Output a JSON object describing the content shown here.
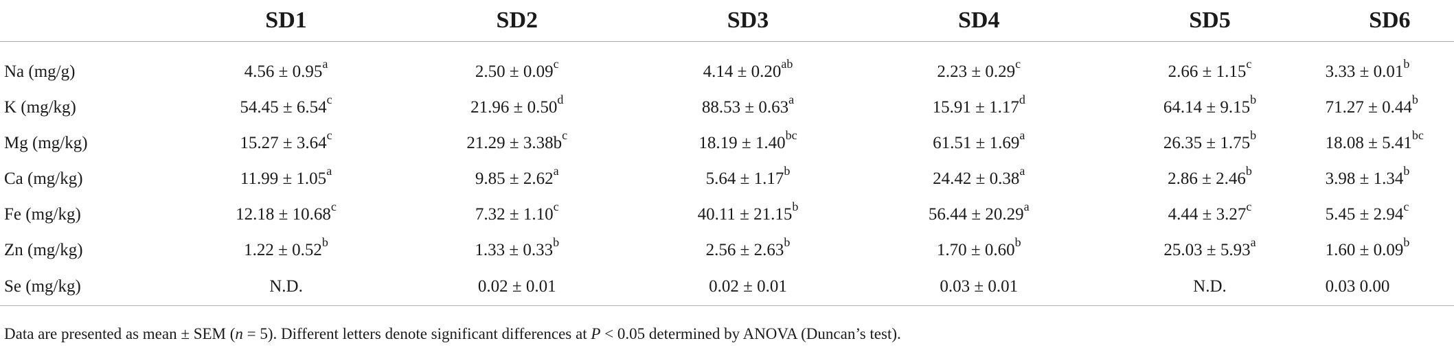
{
  "table": {
    "headers": [
      "",
      "SD1",
      "SD2",
      "SD3",
      "SD4",
      "SD5",
      "SD6"
    ],
    "rows": [
      {
        "label": "Na (mg/g)",
        "cells": [
          {
            "v": "4.56 ± 0.95",
            "s": "a"
          },
          {
            "v": "2.50 ± 0.09",
            "s": "c"
          },
          {
            "v": "4.14 ± 0.20",
            "s": "ab"
          },
          {
            "v": "2.23 ± 0.29",
            "s": "c"
          },
          {
            "v": "2.66 ± 1.15",
            "s": "c"
          },
          {
            "v": "3.33 ± 0.01",
            "s": "b"
          }
        ]
      },
      {
        "label": "K (mg/kg)",
        "cells": [
          {
            "v": "54.45 ± 6.54",
            "s": "c"
          },
          {
            "v": "21.96 ± 0.50",
            "s": "d"
          },
          {
            "v": "88.53 ± 0.63",
            "s": "a"
          },
          {
            "v": "15.91 ± 1.17",
            "s": "d"
          },
          {
            "v": "64.14 ± 9.15",
            "s": "b"
          },
          {
            "v": "71.27 ± 0.44",
            "s": "b"
          }
        ]
      },
      {
        "label": "Mg (mg/kg)",
        "cells": [
          {
            "v": "15.27 ± 3.64",
            "s": "c"
          },
          {
            "v": "21.29 ± 3.38b",
            "s": "c"
          },
          {
            "v": "18.19 ± 1.40",
            "s": "bc"
          },
          {
            "v": "61.51 ± 1.69",
            "s": "a"
          },
          {
            "v": "26.35 ± 1.75",
            "s": "b"
          },
          {
            "v": "18.08 ± 5.41",
            "s": "bc"
          }
        ]
      },
      {
        "label": "Ca (mg/kg)",
        "cells": [
          {
            "v": "11.99 ± 1.05",
            "s": "a"
          },
          {
            "v": "9.85 ± 2.62",
            "s": "a"
          },
          {
            "v": "5.64 ± 1.17",
            "s": "b"
          },
          {
            "v": "24.42 ± 0.38",
            "s": "a"
          },
          {
            "v": "2.86 ± 2.46",
            "s": "b"
          },
          {
            "v": "3.98 ± 1.34",
            "s": "b"
          }
        ]
      },
      {
        "label": "Fe (mg/kg)",
        "cells": [
          {
            "v": "12.18 ± 10.68",
            "s": "c"
          },
          {
            "v": "7.32 ± 1.10",
            "s": "c"
          },
          {
            "v": "40.11 ± 21.15",
            "s": "b"
          },
          {
            "v": "56.44 ± 20.29",
            "s": "a"
          },
          {
            "v": "4.44 ± 3.27",
            "s": "c"
          },
          {
            "v": "5.45 ± 2.94",
            "s": "c"
          }
        ]
      },
      {
        "label": "Zn (mg/kg)",
        "cells": [
          {
            "v": "1.22 ± 0.52",
            "s": "b"
          },
          {
            "v": "1.33 ± 0.33",
            "s": "b"
          },
          {
            "v": "2.56 ± 2.63",
            "s": "b"
          },
          {
            "v": "1.70 ± 0.60",
            "s": "b"
          },
          {
            "v": "25.03 ± 5.93",
            "s": "a"
          },
          {
            "v": "1.60 ± 0.09",
            "s": "b"
          }
        ]
      },
      {
        "label": "Se (mg/kg)",
        "cells": [
          {
            "v": "N.D.",
            "s": ""
          },
          {
            "v": "0.02 ± 0.01",
            "s": ""
          },
          {
            "v": "0.02 ± 0.01",
            "s": ""
          },
          {
            "v": "0.03 ± 0.01",
            "s": ""
          },
          {
            "v": "N.D.",
            "s": ""
          },
          {
            "v": "0.03 0.00",
            "s": ""
          }
        ]
      }
    ]
  },
  "footnote": {
    "p1": "Data are presented as mean ± SEM (",
    "n_var": "n",
    "p2": " = 5). Different letters denote significant differences at ",
    "p_var": "P",
    "p3": " < 0.05 determined by ANOVA (Duncan’s test)."
  }
}
